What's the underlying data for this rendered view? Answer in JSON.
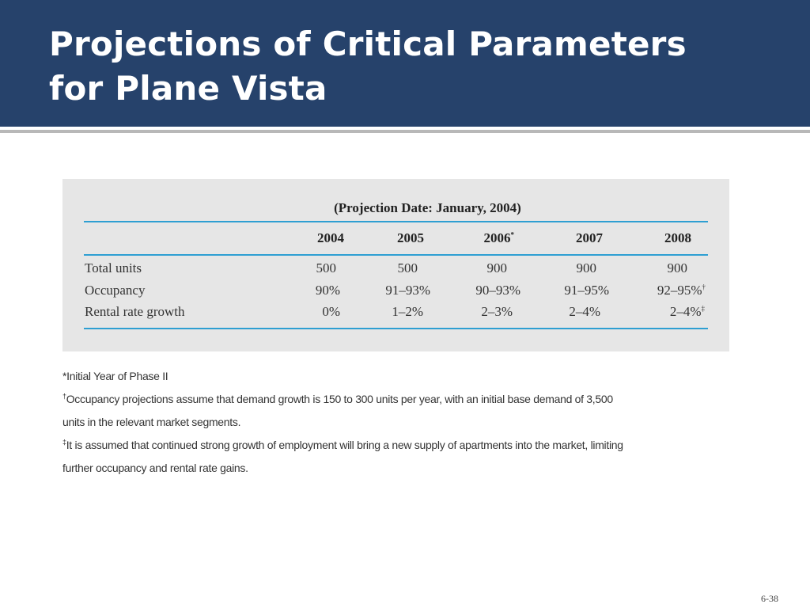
{
  "slide": {
    "title_line1": "Projections of Critical Parameters",
    "title_line2": "for Plane Vista",
    "number": "6-38"
  },
  "table": {
    "projection_date": "(Projection Date: January, 2004)",
    "years": [
      "2004",
      "2005",
      "2006",
      "2007",
      "2008"
    ],
    "year_marks": [
      "",
      "",
      "*",
      "",
      ""
    ],
    "rows": [
      {
        "label": "Total units",
        "values": [
          "500",
          "500",
          "900",
          "900",
          "900"
        ],
        "marks": [
          "",
          "",
          "",
          "",
          ""
        ]
      },
      {
        "label": "Occupancy",
        "values": [
          "90%",
          "91–93%",
          "90–93%",
          "91–95%",
          "92–95%"
        ],
        "marks": [
          "",
          "",
          "",
          "",
          "†"
        ]
      },
      {
        "label": "Rental rate growth",
        "values": [
          "0%",
          "1–2%",
          "2–3%",
          "2–4%",
          "2–4%"
        ],
        "marks": [
          "",
          "",
          "",
          "",
          "‡"
        ]
      }
    ]
  },
  "notes": {
    "n1_mark": "*",
    "n1": "Initial Year of Phase II",
    "n2_mark": "†",
    "n2a": "Occupancy projections assume that demand growth is 150 to 300 units per year, with an initial base demand of 3,500",
    "n2b": "units in the relevant market segments.",
    "n3_mark": "‡",
    "n3a": "It is assumed that continued strong growth of employment will bring a new supply of apartments into the market, limiting",
    "n3b": "further occupancy and rental rate gains."
  }
}
